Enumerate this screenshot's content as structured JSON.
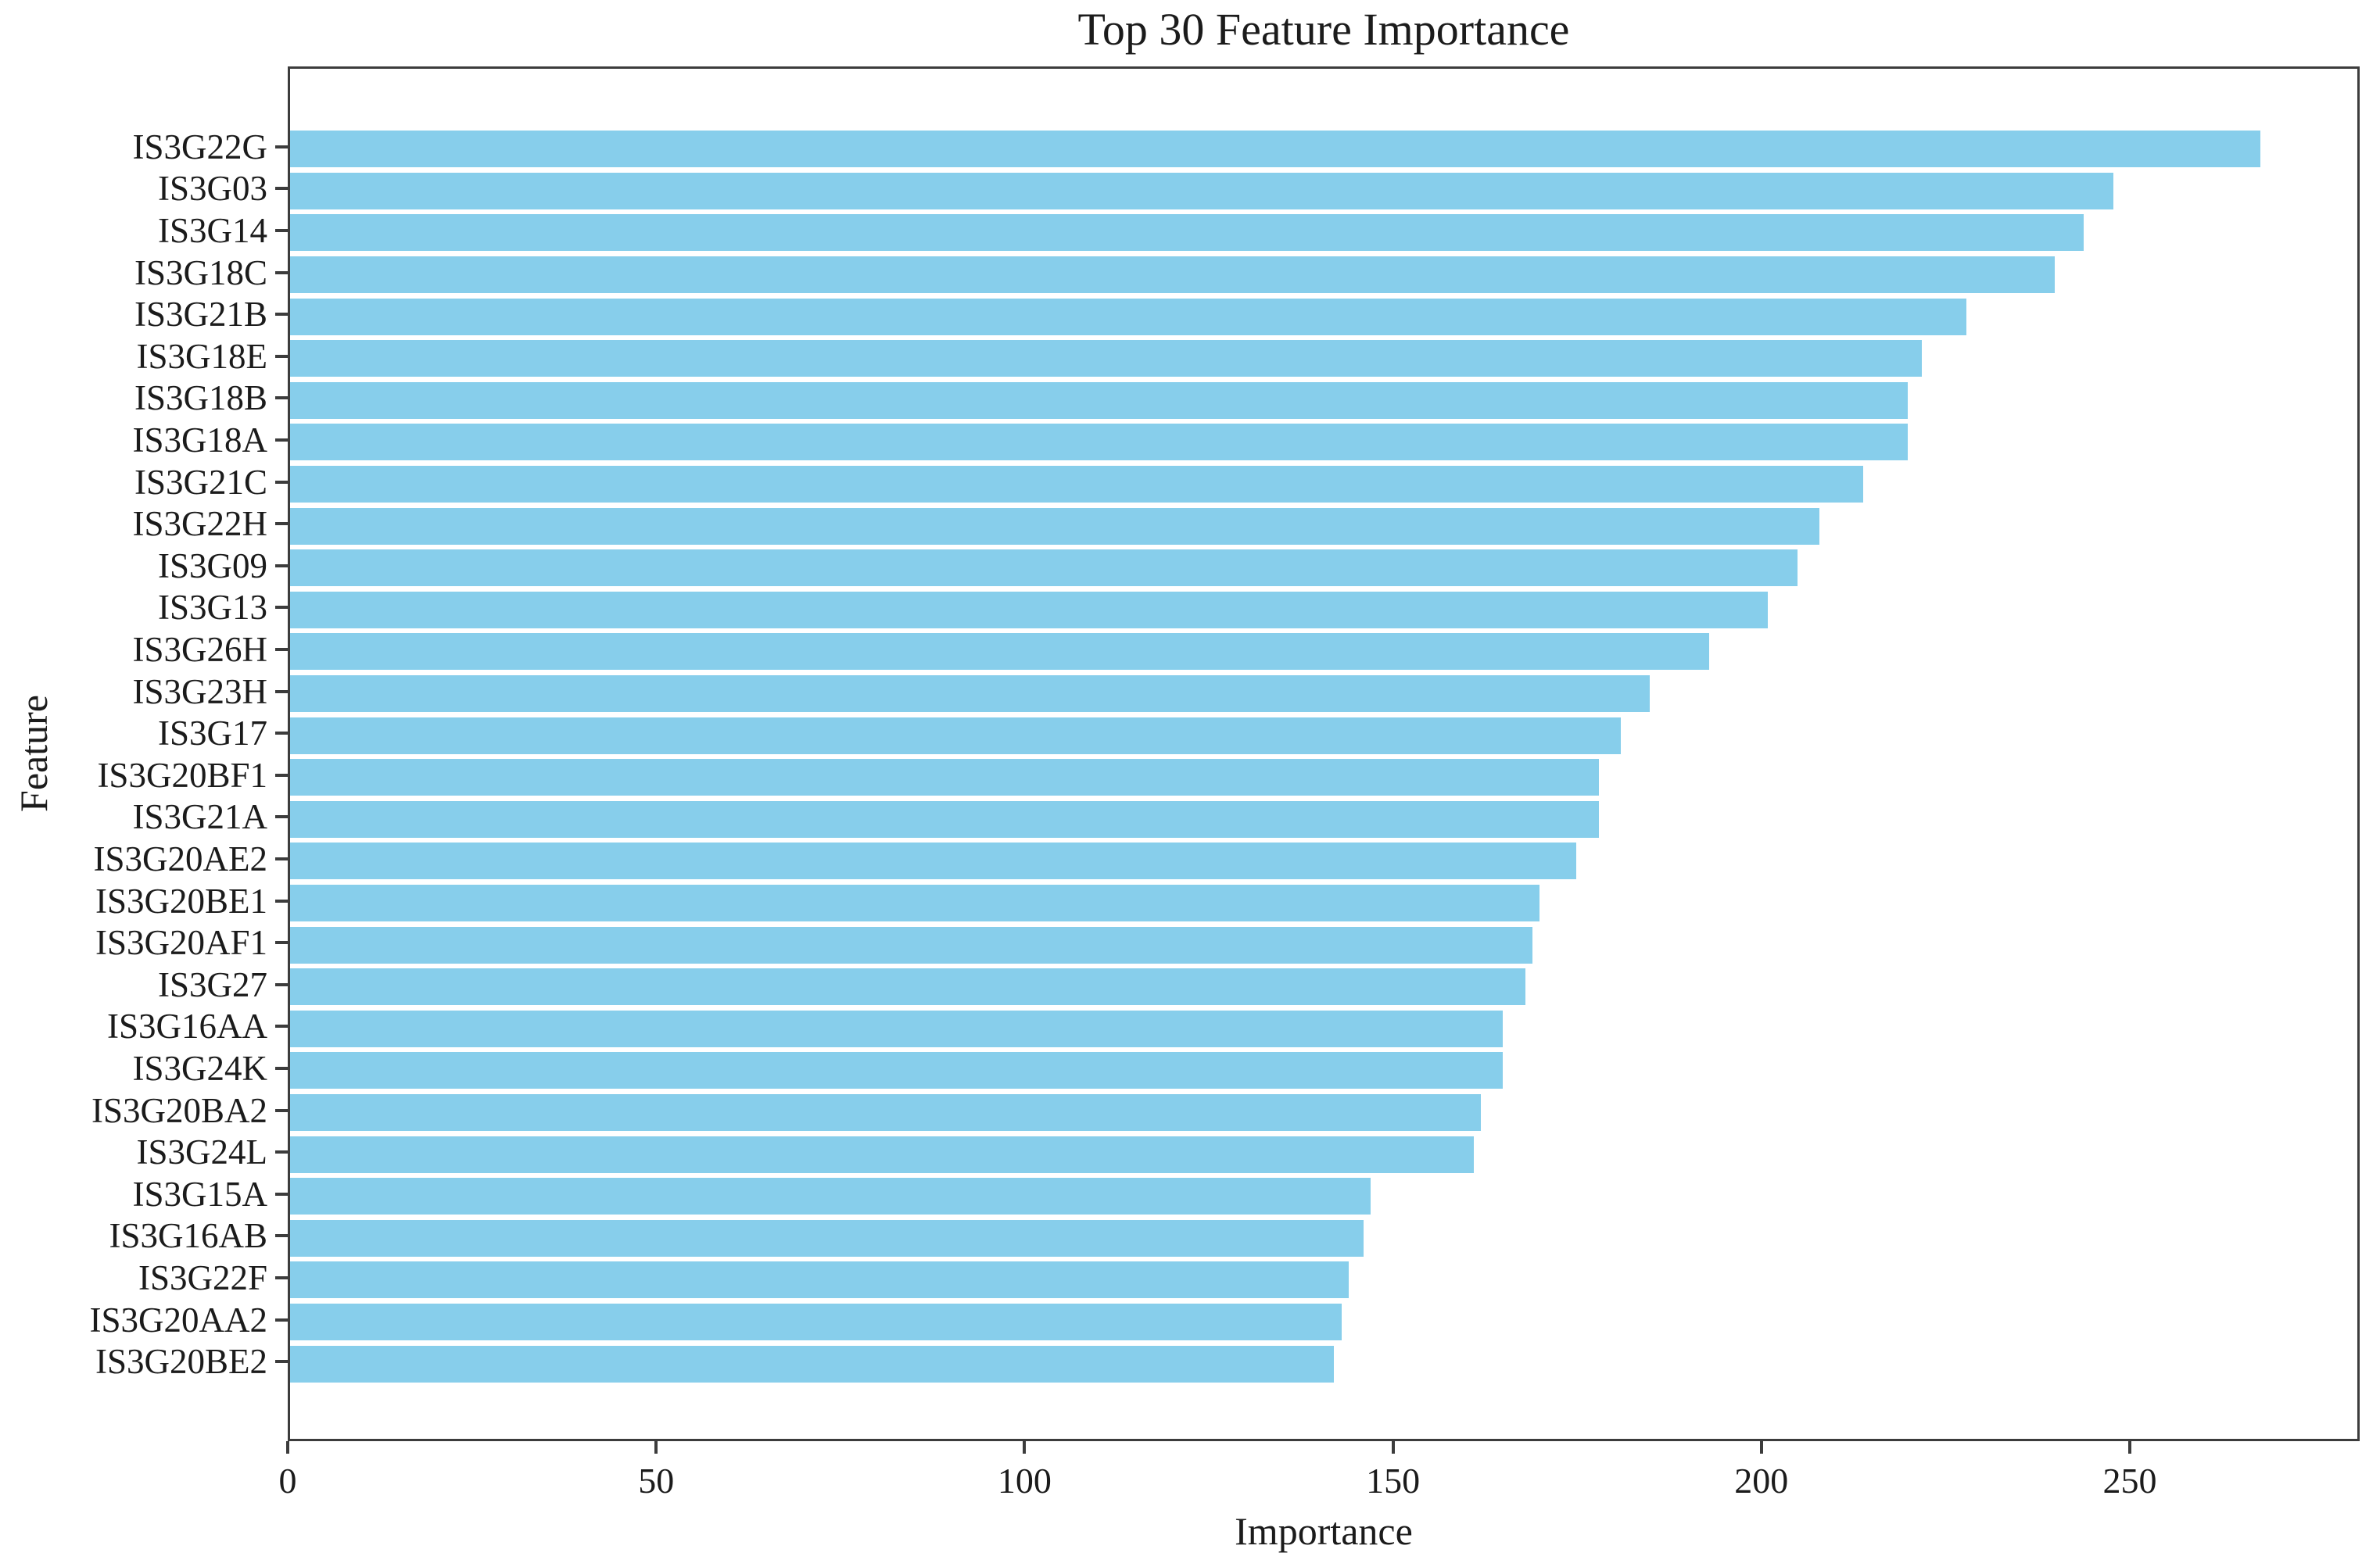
{
  "title": "Top 30 Feature Importance",
  "chart_data": {
    "type": "bar",
    "orientation": "horizontal",
    "title": "Top 30 Feature Importance",
    "xlabel": "Importance",
    "ylabel": "Feature",
    "categories": [
      "IS3G22G",
      "IS3G03",
      "IS3G14",
      "IS3G18C",
      "IS3G21B",
      "IS3G18E",
      "IS3G18B",
      "IS3G18A",
      "IS3G21C",
      "IS3G22H",
      "IS3G09",
      "IS3G13",
      "IS3G26H",
      "IS3G23H",
      "IS3G17",
      "IS3G20BF1",
      "IS3G21A",
      "IS3G20AE2",
      "IS3G20BE1",
      "IS3G20AF1",
      "IS3G27",
      "IS3G16AA",
      "IS3G24K",
      "IS3G20BA2",
      "IS3G24L",
      "IS3G15A",
      "IS3G16AB",
      "IS3G22F",
      "IS3G20AA2",
      "IS3G20BE2"
    ],
    "values": [
      268,
      248,
      244,
      240,
      228,
      222,
      220,
      220,
      214,
      208,
      205,
      201,
      193,
      185,
      181,
      178,
      178,
      175,
      170,
      169,
      168,
      165,
      165,
      162,
      161,
      147,
      146,
      144,
      143,
      142
    ],
    "xlim": [
      0,
      281.2
    ],
    "xticks": [
      0,
      50,
      100,
      150,
      200,
      250
    ],
    "grid": false,
    "legend": null,
    "bar_color": "#87CEEB"
  },
  "colors": {
    "bar": "#87CEEB",
    "spine": "#3c3c3c",
    "text": "#1b1b1b",
    "background": "#ffffff"
  }
}
